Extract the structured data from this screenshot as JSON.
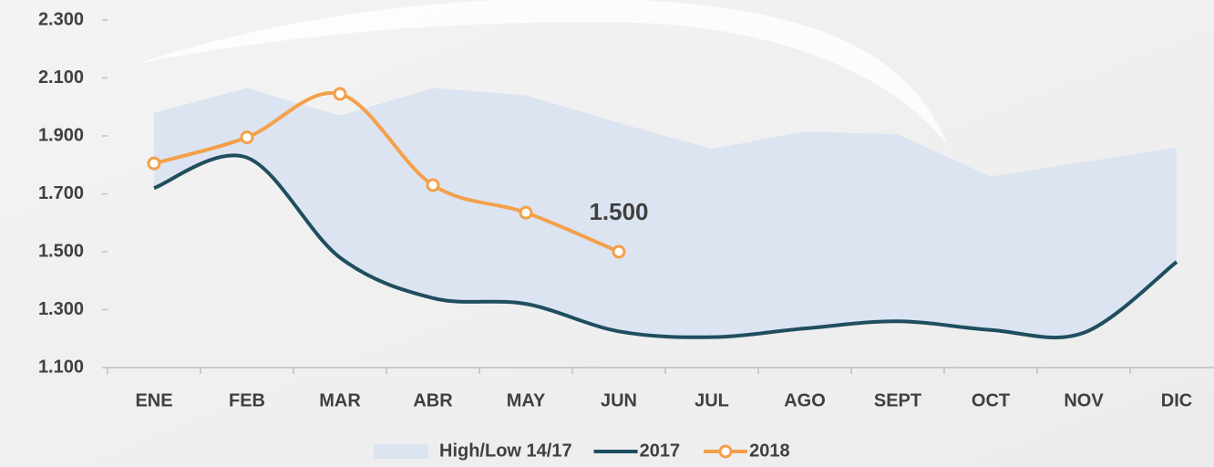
{
  "chart_data": {
    "type": "line",
    "categories": [
      "ENE",
      "FEB",
      "MAR",
      "ABR",
      "MAY",
      "JUN",
      "JUL",
      "AGO",
      "SEPT",
      "OCT",
      "NOV",
      "DIC"
    ],
    "ylim": [
      1100,
      2300
    ],
    "yticks": [
      {
        "value": 1100,
        "label": "1.100"
      },
      {
        "value": 1300,
        "label": "1.300"
      },
      {
        "value": 1500,
        "label": "1.500"
      },
      {
        "value": 1700,
        "label": "1.700"
      },
      {
        "value": 1900,
        "label": "1.900"
      },
      {
        "value": 2100,
        "label": "2.100"
      },
      {
        "value": 2300,
        "label": "2.300"
      }
    ],
    "band": {
      "name": "High/Low 14/17",
      "color": "#dce4f1",
      "high": [
        1980,
        2065,
        1970,
        2065,
        2040,
        1945,
        1855,
        1915,
        1905,
        1760,
        1810,
        1860
      ],
      "low": [
        1720,
        1825,
        1480,
        1340,
        1320,
        1225,
        1205,
        1235,
        1260,
        1230,
        1220,
        1465
      ]
    },
    "series": [
      {
        "name": "2017",
        "color": "#1f4e5f",
        "values": [
          1720,
          1825,
          1480,
          1340,
          1320,
          1225,
          1205,
          1235,
          1260,
          1230,
          1220,
          1465
        ]
      },
      {
        "name": "2018",
        "color": "#f4a04a",
        "markers": true,
        "values": [
          1805,
          1895,
          2045,
          1730,
          1635,
          1500,
          null,
          null,
          null,
          null,
          null,
          null
        ],
        "value_labels": [
          null,
          null,
          null,
          null,
          null,
          "1.500",
          null,
          null,
          null,
          null,
          null,
          null
        ]
      }
    ]
  }
}
